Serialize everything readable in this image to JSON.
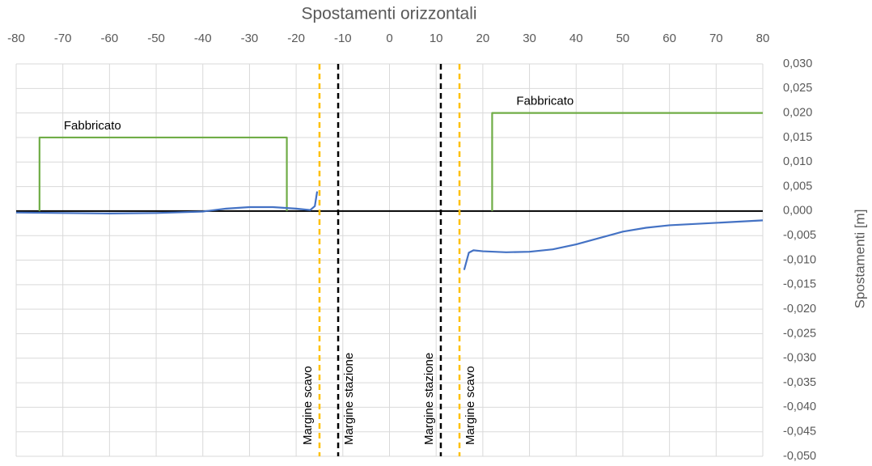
{
  "chart_data": {
    "type": "line",
    "title": "Spostamenti orizzontali",
    "y_label": "Spostamenti [m]",
    "xlim": [
      -80,
      80
    ],
    "xticks": [
      -80,
      -70,
      -60,
      -50,
      -40,
      -30,
      -20,
      -10,
      0,
      10,
      20,
      30,
      40,
      50,
      60,
      70,
      80
    ],
    "ylim": [
      -0.05,
      0.03
    ],
    "yticks": [
      {
        "value": 0.03,
        "label": "0,030"
      },
      {
        "value": 0.025,
        "label": "0,025"
      },
      {
        "value": 0.02,
        "label": "0,020"
      },
      {
        "value": 0.015,
        "label": "0,015"
      },
      {
        "value": 0.01,
        "label": "0,010"
      },
      {
        "value": 0.005,
        "label": "0,005"
      },
      {
        "value": 0,
        "label": "0,000"
      },
      {
        "value": -0.005,
        "label": "-0,005"
      },
      {
        "value": -0.01,
        "label": "-0,010"
      },
      {
        "value": -0.015,
        "label": "-0,015"
      },
      {
        "value": -0.02,
        "label": "-0,020"
      },
      {
        "value": -0.025,
        "label": "-0,025"
      },
      {
        "value": -0.03,
        "label": "-0,030"
      },
      {
        "value": -0.035,
        "label": "-0,035"
      },
      {
        "value": -0.04,
        "label": "-0,040"
      },
      {
        "value": -0.045,
        "label": "-0,045"
      },
      {
        "value": -0.05,
        "label": "-0,050"
      }
    ],
    "grid": true,
    "series": [
      {
        "color": "#70ad47",
        "label": "Fabbricato",
        "x": [
          -75,
          -75,
          -22,
          -22
        ],
        "values": [
          0,
          0.015,
          0.015,
          0
        ]
      },
      {
        "color": "#70ad47",
        "label": "Fabbricato",
        "x": [
          22,
          22,
          80
        ],
        "values": [
          0,
          0.02,
          0.02
        ]
      },
      {
        "color": "#4472c4",
        "x": [
          -80,
          -70,
          -60,
          -50,
          -40,
          -35,
          -30,
          -25,
          -20,
          -17,
          -16,
          -15.5
        ],
        "values": [
          -0.0003,
          -0.0004,
          -0.0005,
          -0.0004,
          -0.0001,
          0.0005,
          0.0008,
          0.0008,
          0.0005,
          0.0002,
          0.001,
          0.004
        ]
      },
      {
        "color": "#4472c4",
        "x": [
          16,
          17,
          18,
          20,
          25,
          30,
          35,
          40,
          45,
          50,
          55,
          60,
          70,
          80
        ],
        "values": [
          -0.012,
          -0.0085,
          -0.008,
          -0.0082,
          -0.0084,
          -0.0083,
          -0.0078,
          -0.0068,
          -0.0055,
          -0.0042,
          -0.0034,
          -0.0029,
          -0.0024,
          -0.0019
        ]
      }
    ],
    "vlines": [
      {
        "x": -15,
        "label": "Margine scavo",
        "color": "#ffc000"
      },
      {
        "x": -11,
        "label": "Margine stazione",
        "color": "#000000"
      },
      {
        "x": 11,
        "label": "Margine stazione",
        "color": "#000000"
      },
      {
        "x": 15,
        "label": "Margine scavo",
        "color": "#ffc000"
      }
    ]
  }
}
